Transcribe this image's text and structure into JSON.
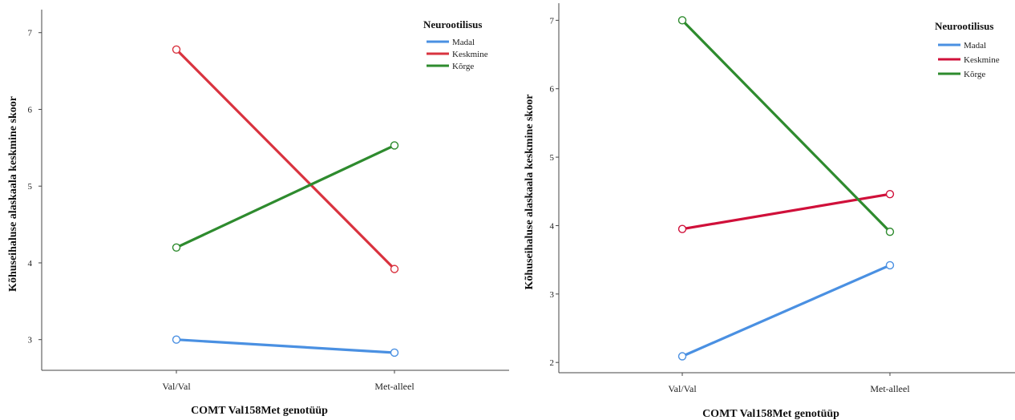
{
  "chart_data": [
    {
      "type": "line",
      "categories": [
        "Val/Val",
        "Met-alleel"
      ],
      "xlabel": "COMT Val158Met genotüüp",
      "ylabel": "Kõhuseihaluse alaskaala keskmine skoor",
      "ylim": [
        2.6,
        7.3
      ],
      "yticks": [
        3,
        4,
        5,
        6,
        7
      ],
      "grid": false,
      "legend": {
        "title": "Neurootilisus",
        "placement": "top-right"
      },
      "series": [
        {
          "name": "Madal",
          "color": "#4a90e2",
          "values": [
            3.0,
            2.83
          ]
        },
        {
          "name": "Keskmine",
          "color": "#d9333f",
          "values": [
            6.78,
            3.92
          ]
        },
        {
          "name": "Kõrge",
          "color": "#2e8b2e",
          "values": [
            4.2,
            5.53
          ]
        }
      ]
    },
    {
      "type": "line",
      "categories": [
        "Val/Val",
        "Met-alleel"
      ],
      "xlabel": "COMT Val158Met genotüüp",
      "ylabel": "Kõhuseihaluse alaskaala keskmine skoor",
      "ylim": [
        1.85,
        7.25
      ],
      "yticks": [
        2,
        3,
        4,
        5,
        6,
        7
      ],
      "grid": false,
      "legend": {
        "title": "Neurootilisus",
        "placement": "top-right"
      },
      "series": [
        {
          "name": "Madal",
          "color": "#4a90e2",
          "values": [
            2.09,
            3.42
          ]
        },
        {
          "name": "Keskmine",
          "color": "#d0103a",
          "values": [
            3.95,
            4.46
          ]
        },
        {
          "name": "Kõrge",
          "color": "#2e8b2e",
          "values": [
            7.0,
            3.91
          ]
        }
      ]
    }
  ]
}
